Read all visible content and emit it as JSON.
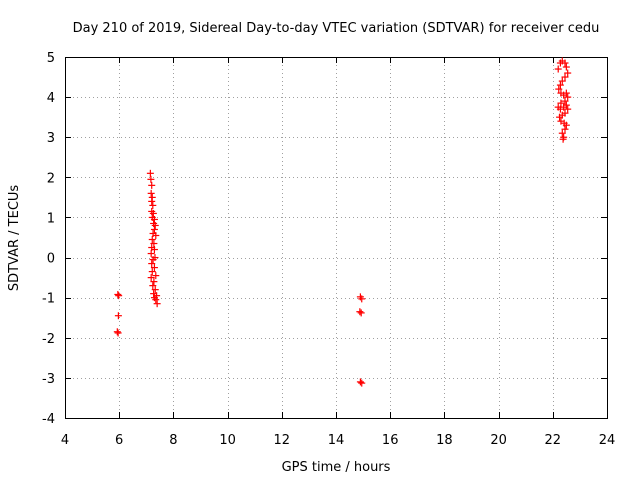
{
  "chart_data": {
    "type": "scatter",
    "title": "Day 210 of 2019, Sidereal Day-to-day VTEC variation (SDTVAR) for receiver cedu",
    "xlabel": "GPS time / hours",
    "ylabel": "SDTVAR / TECUs",
    "xlim": [
      4,
      24
    ],
    "ylim": [
      -4,
      5
    ],
    "xticks": [
      "4",
      "6",
      "8",
      "10",
      "12",
      "14",
      "16",
      "18",
      "20",
      "22",
      "24"
    ],
    "yticks": [
      "-4",
      "-3",
      "-2",
      "-1",
      "0",
      "1",
      "2",
      "3",
      "4",
      "5"
    ],
    "grid": true,
    "marker": "+",
    "series": [
      {
        "name": "SDTVAR",
        "color": "#ff0000",
        "points": [
          [
            5.95,
            -0.92
          ],
          [
            5.98,
            -0.95
          ],
          [
            5.97,
            -1.45
          ],
          [
            5.93,
            -1.85
          ],
          [
            5.96,
            -1.88
          ],
          [
            7.15,
            2.1
          ],
          [
            7.17,
            1.95
          ],
          [
            7.2,
            1.8
          ],
          [
            7.18,
            1.6
          ],
          [
            7.22,
            1.5
          ],
          [
            7.2,
            1.4
          ],
          [
            7.24,
            1.3
          ],
          [
            7.2,
            1.15
          ],
          [
            7.26,
            1.1
          ],
          [
            7.22,
            1.0
          ],
          [
            7.3,
            0.95
          ],
          [
            7.27,
            0.85
          ],
          [
            7.33,
            0.8
          ],
          [
            7.3,
            0.7
          ],
          [
            7.25,
            0.6
          ],
          [
            7.35,
            0.55
          ],
          [
            7.22,
            0.45
          ],
          [
            7.28,
            0.35
          ],
          [
            7.2,
            0.25
          ],
          [
            7.3,
            0.2
          ],
          [
            7.18,
            0.1
          ],
          [
            7.32,
            0.0
          ],
          [
            7.25,
            -0.05
          ],
          [
            7.2,
            -0.15
          ],
          [
            7.3,
            -0.25
          ],
          [
            7.22,
            -0.35
          ],
          [
            7.35,
            -0.45
          ],
          [
            7.18,
            -0.5
          ],
          [
            7.28,
            -0.6
          ],
          [
            7.24,
            -0.7
          ],
          [
            7.33,
            -0.8
          ],
          [
            7.27,
            -0.9
          ],
          [
            7.38,
            -0.95
          ],
          [
            7.3,
            -1.0
          ],
          [
            7.35,
            -1.05
          ],
          [
            7.4,
            -1.15
          ],
          [
            14.9,
            -0.98
          ],
          [
            14.95,
            -1.03
          ],
          [
            14.88,
            -1.35
          ],
          [
            14.93,
            -1.38
          ],
          [
            14.9,
            -3.1
          ],
          [
            14.95,
            -3.13
          ],
          [
            22.2,
            4.7
          ],
          [
            22.28,
            4.85
          ],
          [
            22.35,
            4.9
          ],
          [
            22.45,
            4.85
          ],
          [
            22.5,
            4.75
          ],
          [
            22.55,
            4.6
          ],
          [
            22.45,
            4.5
          ],
          [
            22.35,
            4.4
          ],
          [
            22.28,
            4.3
          ],
          [
            22.22,
            4.2
          ],
          [
            22.3,
            4.1
          ],
          [
            22.4,
            4.05
          ],
          [
            22.5,
            4.1
          ],
          [
            22.55,
            4.0
          ],
          [
            22.45,
            3.9
          ],
          [
            22.3,
            3.85
          ],
          [
            22.2,
            3.75
          ],
          [
            22.28,
            3.7
          ],
          [
            22.4,
            3.75
          ],
          [
            22.5,
            3.8
          ],
          [
            22.55,
            3.7
          ],
          [
            22.45,
            3.6
          ],
          [
            22.35,
            3.55
          ],
          [
            22.25,
            3.5
          ],
          [
            22.3,
            3.4
          ],
          [
            22.42,
            3.35
          ],
          [
            22.5,
            3.3
          ],
          [
            22.45,
            3.2
          ],
          [
            22.35,
            3.1
          ],
          [
            22.4,
            3.0
          ],
          [
            22.38,
            2.95
          ]
        ]
      }
    ]
  }
}
